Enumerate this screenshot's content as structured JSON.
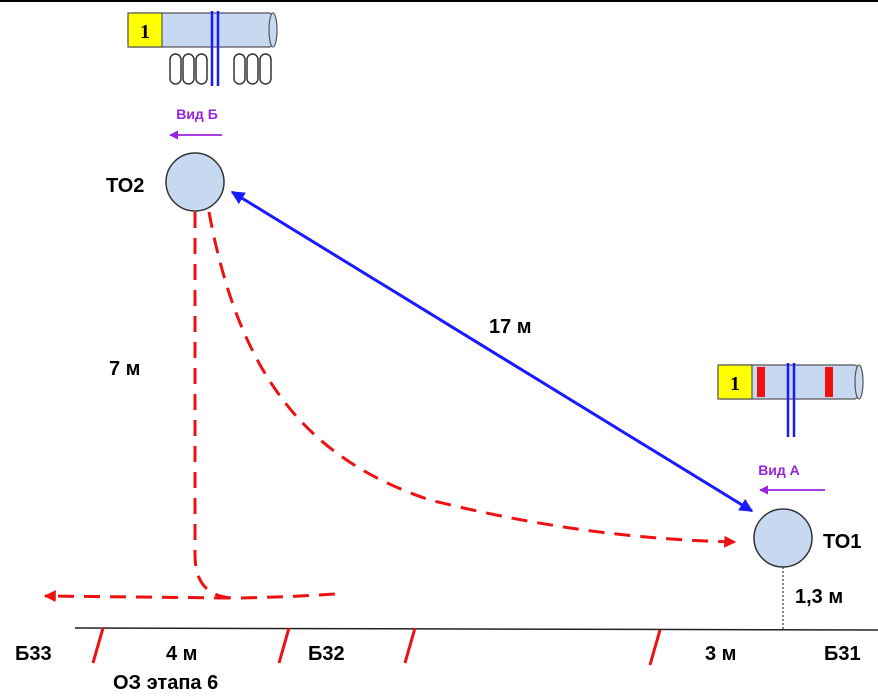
{
  "diagram": {
    "nodes": {
      "to1": {
        "label": "ТО1"
      },
      "to2": {
        "label": "ТО2"
      }
    },
    "distances": {
      "to1_to2": "17 м",
      "to2_vertical": "7 м",
      "to1_offset": "1,3 м",
      "bottom_left": "4 м",
      "bottom_right": "3 м"
    },
    "markers": {
      "b33": "Б33",
      "b32": "Б32",
      "b31": "Б31"
    },
    "zone_label": "ОЗ этапа 6",
    "views": {
      "view_a": "Вид А",
      "view_b": "Вид Б"
    },
    "tubes": {
      "top": {
        "number": "1"
      },
      "right": {
        "number": "1"
      }
    },
    "colors": {
      "link": "#1a1aff",
      "route": "#ee1111",
      "view": "#9922dd",
      "node_fill": "#c6d9f1",
      "badge": "#ffff00"
    }
  }
}
